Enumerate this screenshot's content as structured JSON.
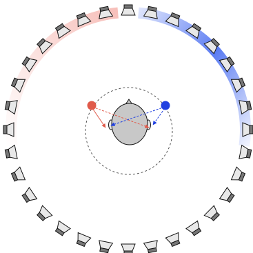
{
  "figure": {
    "speaker_count": 32,
    "colors": {
      "left_arc": "#f08a80",
      "right_arc": "#3d64f0",
      "left_source": "#e05a4a",
      "right_source": "#2040e0",
      "speaker_fill": "#e8e8e8",
      "speaker_back": "#777777",
      "head_fill": "#c8c8c8",
      "outline": "#111111",
      "dashed_circle": "#555555"
    },
    "icons": {
      "speaker": "loudspeaker-icon",
      "head": "listener-head-icon",
      "left_source": "virtual-source-left",
      "right_source": "virtual-source-right"
    }
  }
}
